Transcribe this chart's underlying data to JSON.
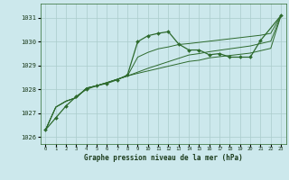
{
  "title": "Graphe pression niveau de la mer (hPa)",
  "bg_color": "#cce8ec",
  "grid_color": "#aacccc",
  "line_color": "#2d6a2d",
  "text_color": "#1a3a1a",
  "xlim": [
    -0.5,
    23.5
  ],
  "ylim": [
    1025.7,
    1031.6
  ],
  "yticks": [
    1026,
    1027,
    1028,
    1029,
    1030,
    1031
  ],
  "xticks": [
    0,
    1,
    2,
    3,
    4,
    5,
    6,
    7,
    8,
    9,
    10,
    11,
    12,
    13,
    14,
    15,
    16,
    17,
    18,
    19,
    20,
    21,
    22,
    23
  ],
  "line1_x": [
    0,
    1,
    2,
    3,
    4,
    5,
    6,
    7,
    8,
    9,
    10,
    11,
    12,
    13,
    14,
    15,
    16,
    17,
    18,
    19,
    20,
    21,
    23
  ],
  "line1_y": [
    1026.3,
    1026.8,
    1027.3,
    1027.7,
    1028.0,
    1028.15,
    1028.25,
    1028.4,
    1028.6,
    1030.0,
    1030.25,
    1030.35,
    1030.42,
    1029.9,
    1029.65,
    1029.65,
    1029.45,
    1029.5,
    1029.35,
    1029.35,
    1029.35,
    1030.05,
    1031.1
  ],
  "line2_x": [
    0,
    1,
    2,
    3,
    4,
    5,
    6,
    7,
    8,
    9,
    10,
    11,
    12,
    13,
    14,
    15,
    16,
    17,
    18,
    19,
    20,
    21,
    22,
    23
  ],
  "line2_y": [
    1026.3,
    1027.25,
    1027.5,
    1027.65,
    1028.05,
    1028.15,
    1028.28,
    1028.42,
    1028.56,
    1029.35,
    1029.55,
    1029.7,
    1029.78,
    1029.88,
    1029.92,
    1029.97,
    1030.02,
    1030.07,
    1030.12,
    1030.17,
    1030.22,
    1030.27,
    1030.35,
    1031.1
  ],
  "line3_x": [
    0,
    1,
    2,
    3,
    4,
    5,
    6,
    7,
    8,
    9,
    10,
    11,
    12,
    13,
    14,
    15,
    16,
    17,
    18,
    19,
    20,
    21,
    22,
    23
  ],
  "line3_y": [
    1026.3,
    1027.25,
    1027.5,
    1027.65,
    1028.05,
    1028.15,
    1028.28,
    1028.42,
    1028.56,
    1028.72,
    1028.88,
    1029.02,
    1029.16,
    1029.3,
    1029.44,
    1029.5,
    1029.58,
    1029.64,
    1029.7,
    1029.76,
    1029.82,
    1029.92,
    1030.02,
    1031.1
  ],
  "line4_x": [
    0,
    1,
    2,
    3,
    4,
    5,
    6,
    7,
    8,
    9,
    10,
    11,
    12,
    13,
    14,
    15,
    16,
    17,
    18,
    19,
    20,
    21,
    22,
    23
  ],
  "line4_y": [
    1026.3,
    1027.25,
    1027.5,
    1027.65,
    1028.05,
    1028.15,
    1028.28,
    1028.42,
    1028.56,
    1028.67,
    1028.77,
    1028.87,
    1028.97,
    1029.07,
    1029.17,
    1029.22,
    1029.32,
    1029.37,
    1029.42,
    1029.47,
    1029.52,
    1029.62,
    1029.72,
    1031.1
  ]
}
